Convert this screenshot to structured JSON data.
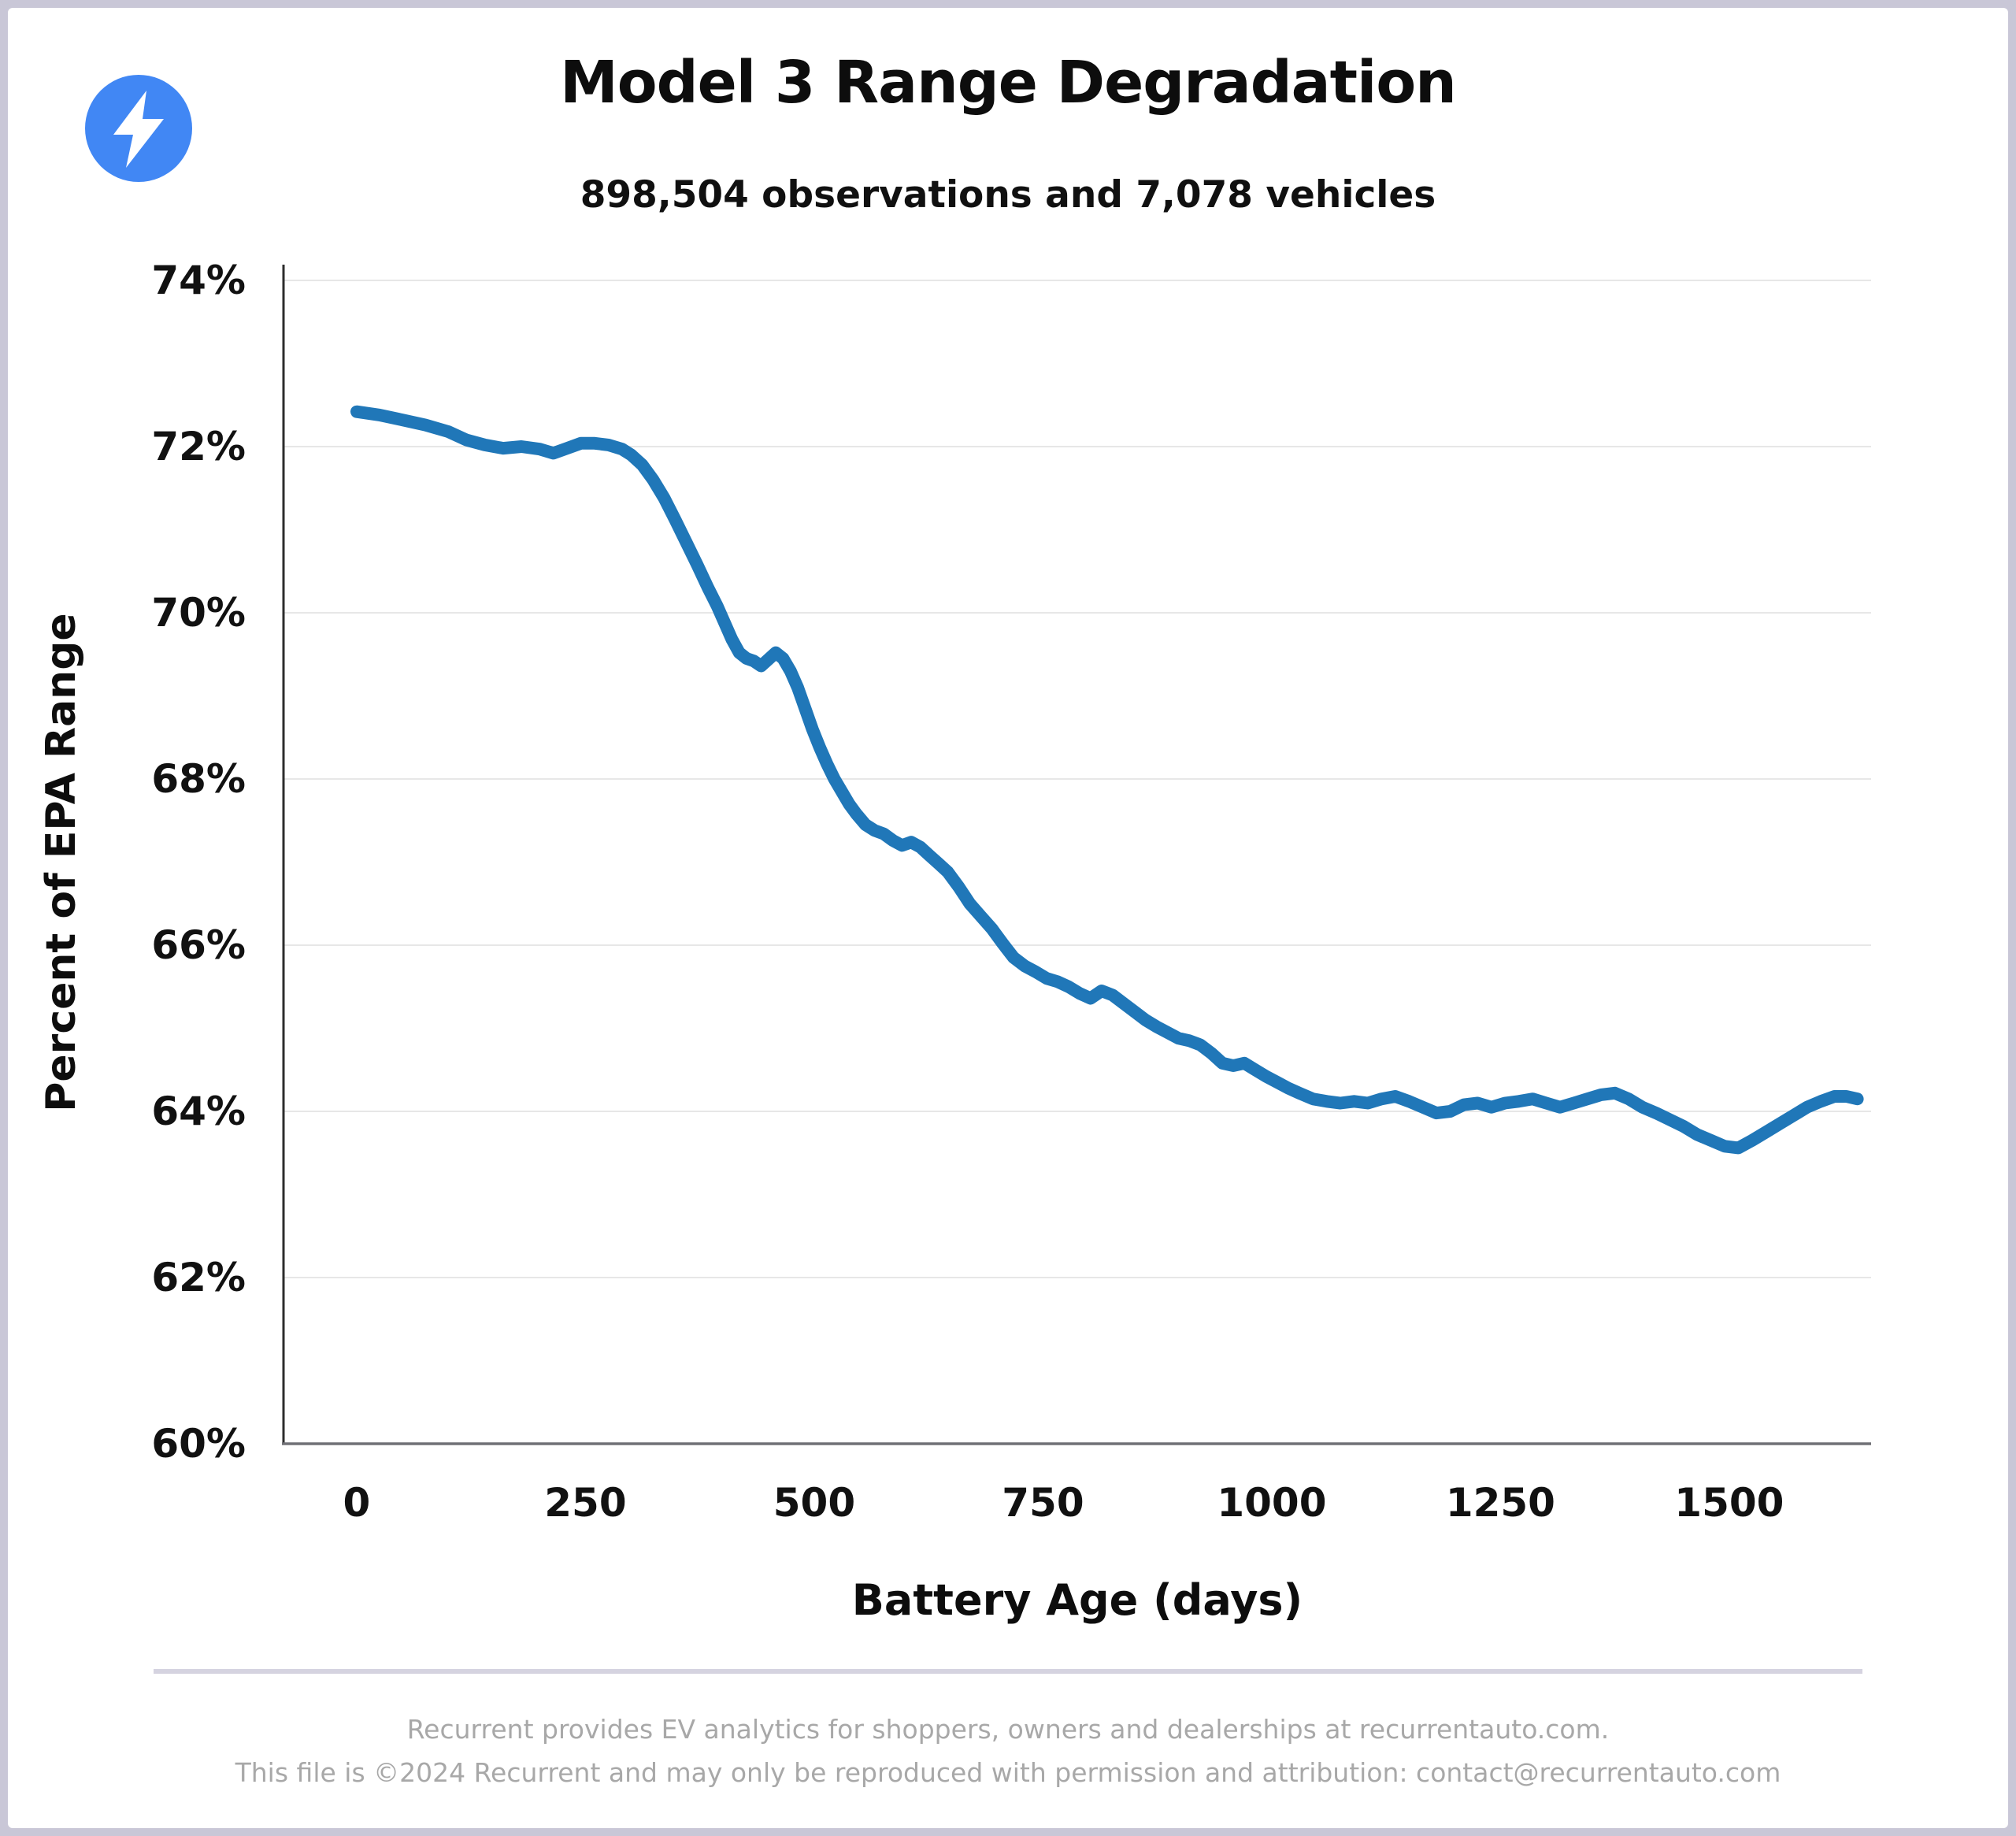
{
  "header": {
    "title": "Model 3 Range Degradation",
    "subtitle": "898,504 observations and 7,078 vehicles"
  },
  "logo": {
    "icon": "lightning-bolt-icon",
    "circle_color": "#4187f4",
    "bolt_color": "#ffffff"
  },
  "footer": {
    "line1": "Recurrent provides EV analytics for shoppers, owners and dealerships at recurrentauto.com.",
    "line2": "This file is ©2024 Recurrent and may only be reproduced with permission and attribution: contact@recurrentauto.com"
  },
  "chart_data": {
    "type": "line",
    "title": "Model 3 Range Degradation",
    "subtitle": "898,504 observations and 7,078 vehicles",
    "xlabel": "Battery Age (days)",
    "ylabel": "Percent of EPA Range",
    "xlim": [
      -80,
      1655
    ],
    "ylim": [
      60,
      74
    ],
    "grid": true,
    "grid_color": "#e7e7e7",
    "legend_position": "none",
    "x_ticks": [
      0,
      250,
      500,
      750,
      1000,
      1250,
      1500
    ],
    "x_tick_labels": [
      "0",
      "250",
      "500",
      "750",
      "1000",
      "1250",
      "1500"
    ],
    "y_ticks": [
      74,
      72,
      70,
      68,
      66,
      64,
      62,
      60
    ],
    "y_tick_labels": [
      "74%",
      "72%",
      "70%",
      "68%",
      "66%",
      "64%",
      "62%",
      "60%"
    ],
    "series": [
      {
        "name": "Model 3 percent of EPA range",
        "color": "#2077b8",
        "x": [
          0,
          25,
          50,
          75,
          100,
          120,
          140,
          160,
          180,
          200,
          215,
          230,
          245,
          260,
          275,
          290,
          300,
          312,
          324,
          336,
          348,
          360,
          372,
          384,
          394,
          402,
          410,
          418,
          426,
          434,
          442,
          450,
          458,
          466,
          474,
          482,
          490,
          498,
          506,
          514,
          522,
          530,
          538,
          546,
          556,
          566,
          576,
          586,
          596,
          606,
          616,
          626,
          636,
          646,
          658,
          670,
          682,
          694,
          706,
          718,
          730,
          742,
          754,
          766,
          778,
          790,
          802,
          814,
          826,
          838,
          850,
          862,
          874,
          886,
          898,
          910,
          922,
          934,
          946,
          958,
          970,
          982,
          994,
          1006,
          1018,
          1030,
          1045,
          1060,
          1075,
          1090,
          1105,
          1120,
          1135,
          1150,
          1165,
          1180,
          1195,
          1210,
          1225,
          1240,
          1255,
          1270,
          1285,
          1300,
          1315,
          1330,
          1345,
          1360,
          1375,
          1390,
          1405,
          1420,
          1435,
          1450,
          1465,
          1480,
          1495,
          1510,
          1525,
          1540,
          1555,
          1570,
          1585,
          1600,
          1615,
          1628,
          1640
        ],
        "y": [
          72.42,
          72.38,
          72.32,
          72.26,
          72.18,
          72.08,
          72.02,
          71.98,
          72.0,
          71.97,
          71.92,
          71.98,
          72.04,
          72.04,
          72.02,
          71.97,
          71.9,
          71.78,
          71.6,
          71.38,
          71.12,
          70.85,
          70.58,
          70.3,
          70.08,
          69.88,
          69.68,
          69.52,
          69.45,
          69.42,
          69.36,
          69.44,
          69.52,
          69.45,
          69.3,
          69.1,
          68.85,
          68.6,
          68.38,
          68.18,
          68.0,
          67.85,
          67.7,
          67.58,
          67.45,
          67.38,
          67.34,
          67.26,
          67.2,
          67.24,
          67.18,
          67.08,
          66.98,
          66.88,
          66.7,
          66.5,
          66.35,
          66.2,
          66.02,
          65.85,
          65.75,
          65.68,
          65.6,
          65.56,
          65.5,
          65.42,
          65.36,
          65.45,
          65.4,
          65.3,
          65.2,
          65.1,
          65.02,
          64.95,
          64.88,
          64.85,
          64.8,
          64.7,
          64.58,
          64.55,
          64.58,
          64.5,
          64.42,
          64.35,
          64.28,
          64.22,
          64.15,
          64.12,
          64.1,
          64.12,
          64.1,
          64.15,
          64.18,
          64.12,
          64.05,
          63.98,
          64.0,
          64.08,
          64.1,
          64.05,
          64.1,
          64.12,
          64.15,
          64.1,
          64.05,
          64.1,
          64.15,
          64.2,
          64.22,
          64.15,
          64.05,
          63.98,
          63.9,
          63.82,
          63.72,
          63.65,
          63.58,
          63.56,
          63.65,
          63.75,
          63.85,
          63.95,
          64.05,
          64.12,
          64.18,
          64.18,
          64.15
        ]
      }
    ]
  }
}
